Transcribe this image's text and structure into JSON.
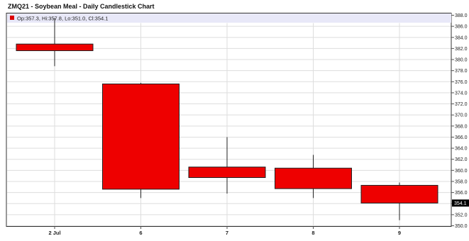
{
  "chart_data": {
    "type": "candlestick",
    "title": "ZMQ21 - Soybean Meal - Daily Candlestick Chart",
    "legend": {
      "text": "Op:357.3, Hi:357.8, Lo:351.0, Cl:354.1",
      "color": "#dd0000",
      "placement": "top-left"
    },
    "categories": [
      "2 Jul",
      "6",
      "7",
      "8",
      "9"
    ],
    "candles": [
      {
        "label": "2 Jul",
        "open": 382.8,
        "high": 387.5,
        "low": 378.8,
        "close": 381.6
      },
      {
        "label": "6",
        "open": 375.6,
        "high": 375.8,
        "low": 355.0,
        "close": 356.6
      },
      {
        "label": "7",
        "open": 360.6,
        "high": 366.0,
        "low": 355.8,
        "close": 358.7
      },
      {
        "label": "8",
        "open": 360.4,
        "high": 362.8,
        "low": 355.0,
        "close": 356.7
      },
      {
        "label": "9",
        "open": 357.3,
        "high": 357.8,
        "low": 351.0,
        "close": 354.1
      }
    ],
    "y_ticks": [
      "388.0",
      "386.0",
      "384.0",
      "382.0",
      "380.0",
      "378.0",
      "376.0",
      "374.0",
      "372.0",
      "370.0",
      "368.0",
      "366.0",
      "364.0",
      "362.0",
      "360.0",
      "358.0",
      "356.0",
      "354.0",
      "352.0",
      "350.0"
    ],
    "ylim": [
      350,
      388
    ],
    "y_axis_position": "right",
    "last_price_label": "354.1",
    "grid": true,
    "candle_color": "#ee0000",
    "last_label_bg": "#000000"
  }
}
